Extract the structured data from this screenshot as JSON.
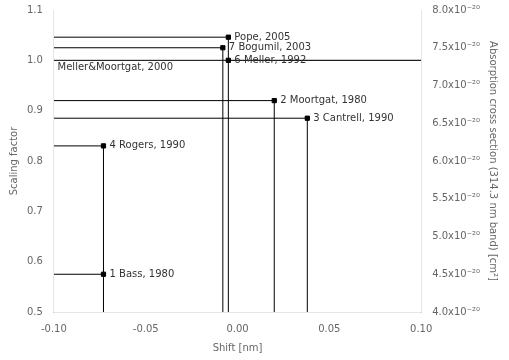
{
  "chart_data": {
    "type": "scatter",
    "x": [
      -0.073,
      0.02,
      0.038,
      -0.073,
      -0.005,
      -0.008,
      -0.005
    ],
    "values": [
      0.575,
      0.92,
      0.885,
      0.83,
      1.0,
      1.025,
      1.046
    ],
    "point_labels": [
      "1 Bass, 1980",
      "2 Moortgat, 1980",
      "3 Cantrell, 1990",
      "4 Rogers, 1990",
      "6 Meller, 1992",
      "7 Bogumil, 2003",
      "Pope, 2005"
    ],
    "color": "black",
    "marker": "square",
    "hlines": [
      {
        "y": 0.575,
        "xmin": -0.1,
        "xmax": -0.073,
        "color": "black"
      },
      {
        "y": 0.92,
        "xmin": -0.1,
        "xmax": 0.02,
        "color": "black"
      },
      {
        "y": 0.885,
        "xmin": -0.1,
        "xmax": 0.038,
        "color": "black"
      },
      {
        "y": 0.83,
        "xmin": -0.1,
        "xmax": -0.073,
        "color": "black"
      },
      {
        "y": 1.0,
        "xmin": -0.1,
        "xmax": 0.1,
        "color": "black"
      },
      {
        "y": 1.025,
        "xmin": -0.1,
        "xmax": -0.008,
        "color": "black"
      },
      {
        "y": 1.046,
        "xmin": -0.1,
        "xmax": -0.005,
        "color": "black"
      },
      {
        "y": 1.0,
        "xmin": -0.005,
        "xmax": 0.1,
        "color": "#aaaaaa"
      }
    ],
    "vlines": [
      {
        "x": -0.073,
        "ymin": 0.5,
        "ymax": 0.83,
        "color": "black"
      },
      {
        "x": 0.02,
        "ymin": 0.5,
        "ymax": 0.92,
        "color": "black"
      },
      {
        "x": 0.038,
        "ymin": 0.5,
        "ymax": 0.885,
        "color": "black"
      },
      {
        "x": -0.005,
        "ymin": 0.5,
        "ymax": 1.046,
        "color": "black"
      },
      {
        "x": -0.008,
        "ymin": 0.5,
        "ymax": 1.025,
        "color": "black"
      }
    ],
    "reference_label": {
      "x": -0.098,
      "y": 1.0,
      "text": "Meller&Moortgat, 2000"
    },
    "xlabel": "Shift [nm]",
    "ylabel": "Scaling factor",
    "y2label": "Absorption cross section (314.3 nm band) [cm²]",
    "xlim": [
      -0.1,
      0.1
    ],
    "xticks": [
      {
        "value": -0.1,
        "label": "-0.10"
      },
      -0.05,
      {
        "value": 0.0,
        "label": "0.00"
      },
      0.05,
      {
        "value": 0.1,
        "label": "0.10"
      }
    ],
    "ylim": [
      0.5,
      1.1
    ],
    "yticks": [
      0.5,
      0.6,
      0.7,
      0.8,
      0.9,
      {
        "value": 1.0,
        "label": "1.0"
      },
      1.1
    ],
    "y2lim": [
      4e-20,
      8e-20
    ],
    "y2ticks": [
      {
        "value": 4e-20,
        "label": "4.0x10⁻²⁰"
      },
      {
        "value": 4.5e-20,
        "label": "4.5x10⁻²⁰"
      },
      {
        "value": 5e-20,
        "label": "5.0x10⁻²⁰"
      },
      {
        "value": 5.5e-20,
        "label": "5.5x10⁻²⁰"
      },
      {
        "value": 6e-20,
        "label": "6.0x10⁻²⁰"
      },
      {
        "value": 6.5e-20,
        "label": "6.5x10⁻²⁰"
      },
      {
        "value": 7e-20,
        "label": "7.0x10⁻²⁰"
      },
      {
        "value": 7.5e-20,
        "label": "7.5x10⁻²⁰"
      },
      {
        "value": 8e-20,
        "label": "8.0x10⁻²⁰"
      }
    ],
    "grid": false
  }
}
